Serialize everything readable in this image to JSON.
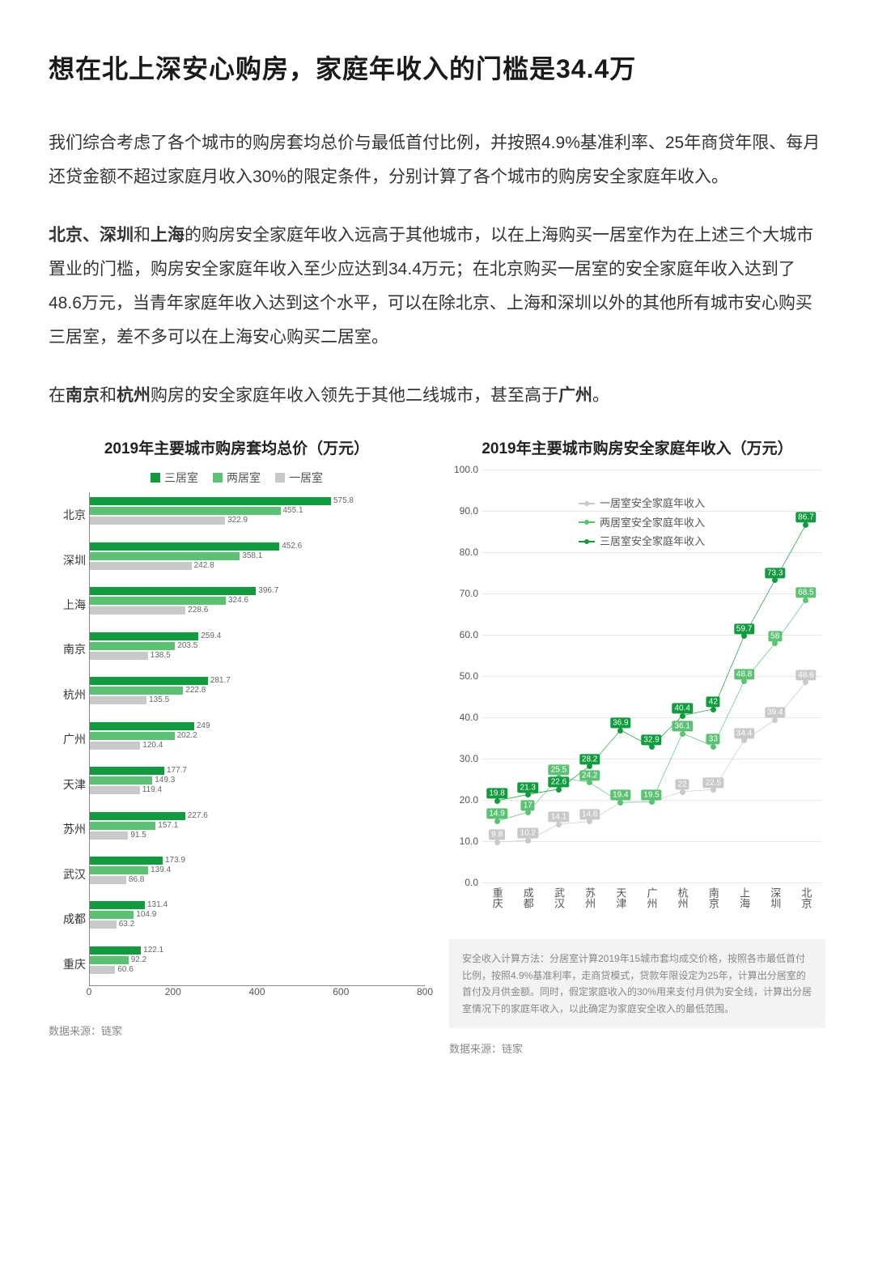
{
  "title": "想在北上深安心购房，家庭年收入的门槛是34.4万",
  "para1": "我们综合考虑了各个城市的购房套均总价与最低首付比例，并按照4.9%基准利率、25年商贷年限、每月还贷金额不超过家庭月收入30%的限定条件，分别计算了各个城市的购房安全家庭年收入。",
  "para2_pre": "",
  "para2_b1": "北京、深圳",
  "para2_mid1": "和",
  "para2_b2": "上海",
  "para2_post": "的购房安全家庭年收入远高于其他城市，以在上海购买一居室作为在上述三个大城市置业的门槛，购房安全家庭年收入至少应达到34.4万元；在北京购买一居室的安全家庭年收入达到了48.6万元，当青年家庭年收入达到这个水平，可以在除北京、上海和深圳以外的其他所有城市安心购买三居室，差不多可以在上海安心购买二居室。",
  "para3_pre": "在",
  "para3_b1": "南京",
  "para3_mid1": "和",
  "para3_b2": "杭州",
  "para3_mid2": "购房的安全家庭年收入领先于其他二线城市，甚至高于",
  "para3_b3": "广州",
  "para3_post": "。",
  "colors": {
    "c3": "#0f9b3e",
    "c2": "#5bc274",
    "c1": "#c9c9c9",
    "grid": "#e8e8e8"
  },
  "bar_chart": {
    "title": "2019年主要城市购房套均总价（万元）",
    "legend": [
      {
        "label": "三居室",
        "color": "#0f9b3e"
      },
      {
        "label": "两居室",
        "color": "#5bc274"
      },
      {
        "label": "一居室",
        "color": "#c9c9c9"
      }
    ],
    "xmax": 800,
    "xticks": [
      0,
      200,
      400,
      600,
      800
    ],
    "cities": [
      {
        "name": "北京",
        "v3": 575.8,
        "v2": 455.1,
        "v1": 322.9
      },
      {
        "name": "深圳",
        "v3": 452.6,
        "v2": 358.1,
        "v1": 242.8
      },
      {
        "name": "上海",
        "v3": 396.7,
        "v2": 324.6,
        "v1": 228.6
      },
      {
        "name": "南京",
        "v3": 259.4,
        "v2": 203.5,
        "v1": 138.5
      },
      {
        "name": "杭州",
        "v3": 281.7,
        "v2": 222.8,
        "v1": 135.5
      },
      {
        "name": "广州",
        "v3": 249,
        "v2": 202.2,
        "v1": 120.4
      },
      {
        "name": "天津",
        "v3": 177.7,
        "v2": 149.3,
        "v1": 119.4
      },
      {
        "name": "苏州",
        "v3": 227.6,
        "v2": 157.1,
        "v1": 91.5
      },
      {
        "name": "武汉",
        "v3": 173.9,
        "v2": 139.4,
        "v1": 86.8
      },
      {
        "name": "成都",
        "v3": 131.4,
        "v2": 104.9,
        "v1": 63.2
      },
      {
        "name": "重庆",
        "v3": 122.1,
        "v2": 92.2,
        "v1": 60.6
      }
    ],
    "source": "数据来源：链家"
  },
  "line_chart": {
    "title": "2019年主要城市购房安全家庭年收入（万元）",
    "ymax": 100,
    "ymin": 0,
    "ystep": 10,
    "legend": [
      {
        "label": "一居室安全家庭年收入",
        "color": "#c9c9c9"
      },
      {
        "label": "两居室安全家庭年收入",
        "color": "#5bc274"
      },
      {
        "label": "三居室安全家庭年收入",
        "color": "#0f9b3e"
      }
    ],
    "cities": [
      "重庆",
      "成都",
      "武汉",
      "苏州",
      "天津",
      "广州",
      "杭州",
      "南京",
      "上海",
      "深圳",
      "北京"
    ],
    "series3": [
      19.8,
      21.3,
      22.6,
      28.2,
      36.9,
      32.9,
      40.4,
      42.0,
      59.7,
      73.3,
      86.7
    ],
    "series2": [
      14.9,
      17.0,
      25.5,
      24.2,
      19.4,
      19.5,
      36.1,
      33.0,
      48.8,
      58.0,
      68.5
    ],
    "series1": [
      9.8,
      10.2,
      14.1,
      14.8,
      19.4,
      19.5,
      22.0,
      22.5,
      34.4,
      39.4,
      48.6
    ],
    "note": "安全收入计算方法：分居室计算2019年15城市套均成交价格，按照各市最低首付比例，按照4.9%基准利率，走商贷模式，贷款年限设定为25年，计算出分居室的首付及月供金额。同时，假定家庭收入的30%用来支付月供为安全线，计算出分居室情况下的家庭年收入，以此确定为家庭安全收入的最低范围。",
    "source": "数据来源：链家"
  }
}
